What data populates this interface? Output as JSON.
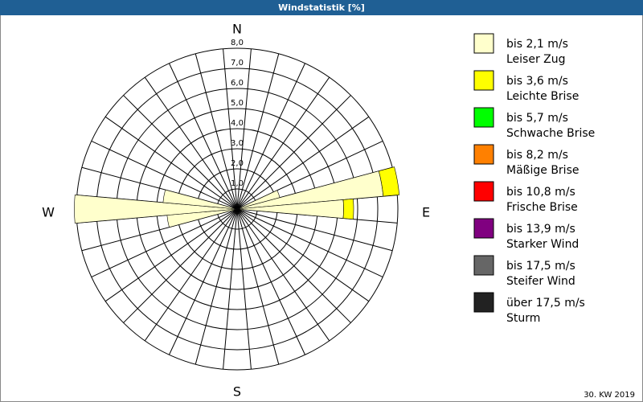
{
  "chart_data": {
    "type": "windrose",
    "title": "Windstatistik [%]",
    "footer": "30. KW 2019",
    "compass_labels": [
      "N",
      "E",
      "S",
      "W"
    ],
    "x": [
      0,
      10,
      20,
      30,
      40,
      50,
      60,
      70,
      80,
      90,
      100,
      110,
      120,
      130,
      140,
      150,
      160,
      170,
      180,
      190,
      200,
      210,
      220,
      230,
      240,
      250,
      260,
      270,
      280,
      290,
      300,
      310,
      320,
      330,
      340,
      350
    ],
    "ylim": [
      0,
      8
    ],
    "yticks": [
      {
        "value": 1,
        "label": "1,0"
      },
      {
        "value": 2,
        "label": "2,0"
      },
      {
        "value": 3,
        "label": "3,0"
      },
      {
        "value": 4,
        "label": "4,0"
      },
      {
        "value": 5,
        "label": "5,0"
      },
      {
        "value": 6,
        "label": "6,0"
      },
      {
        "value": 7,
        "label": "7,0"
      },
      {
        "value": 8,
        "label": "8,0"
      }
    ],
    "series": [
      {
        "name": "bis 2,1 m/s",
        "subtitle": "Leiser Zug",
        "color": "#ffffcc",
        "values": [
          0,
          0,
          0,
          0,
          0,
          0,
          0,
          2.2,
          7.3,
          5.3,
          0.3,
          0,
          0,
          0,
          0,
          0,
          0,
          0,
          0,
          0,
          0,
          0,
          0,
          0,
          0,
          0.3,
          3.5,
          8.1,
          3.7,
          0,
          0,
          0,
          0,
          0,
          0,
          0
        ]
      },
      {
        "name": "bis 3,6 m/s",
        "subtitle": "Leichte Brise",
        "color": "#ffff00",
        "values": [
          0,
          0,
          0,
          0,
          0,
          0,
          0,
          0,
          0.8,
          0.5,
          0,
          0,
          0,
          0,
          0,
          0,
          0,
          0,
          0,
          0,
          0,
          0,
          0,
          0,
          0,
          0,
          0,
          0,
          0,
          0,
          0,
          0,
          0,
          0,
          0,
          0
        ]
      },
      {
        "name": "bis 5,7 m/s",
        "subtitle": "Schwache Brise",
        "color": "#00ff00",
        "values": [
          0,
          0,
          0,
          0,
          0,
          0,
          0,
          0,
          0,
          0,
          0,
          0,
          0,
          0,
          0,
          0,
          0,
          0,
          0,
          0,
          0,
          0,
          0,
          0,
          0,
          0,
          0,
          0,
          0,
          0,
          0,
          0,
          0,
          0,
          0,
          0
        ]
      },
      {
        "name": "bis 8,2 m/s",
        "subtitle": "Mäßige Brise",
        "color": "#ff8000",
        "values": [
          0,
          0,
          0,
          0,
          0,
          0,
          0,
          0,
          0,
          0,
          0,
          0,
          0,
          0,
          0,
          0,
          0,
          0,
          0,
          0,
          0,
          0,
          0,
          0,
          0,
          0,
          0,
          0,
          0,
          0,
          0,
          0,
          0,
          0,
          0,
          0
        ]
      },
      {
        "name": "bis 10,8 m/s",
        "subtitle": "Frische Brise",
        "color": "#ff0000",
        "values": [
          0,
          0,
          0,
          0,
          0,
          0,
          0,
          0,
          0,
          0,
          0,
          0,
          0,
          0,
          0,
          0,
          0,
          0,
          0,
          0,
          0,
          0,
          0,
          0,
          0,
          0,
          0,
          0,
          0,
          0,
          0,
          0,
          0,
          0,
          0,
          0
        ]
      },
      {
        "name": "bis 13,9 m/s",
        "subtitle": "Starker Wind",
        "color": "#800080",
        "values": [
          0,
          0,
          0,
          0,
          0,
          0,
          0,
          0,
          0,
          0,
          0,
          0,
          0,
          0,
          0,
          0,
          0,
          0,
          0,
          0,
          0,
          0,
          0,
          0,
          0,
          0,
          0,
          0,
          0,
          0,
          0,
          0,
          0,
          0,
          0,
          0
        ]
      },
      {
        "name": "bis 17,5 m/s",
        "subtitle": "Steifer Wind",
        "color": "#666666",
        "values": [
          0,
          0,
          0,
          0,
          0,
          0,
          0,
          0,
          0,
          0,
          0,
          0,
          0,
          0,
          0,
          0,
          0,
          0,
          0,
          0,
          0,
          0,
          0,
          0,
          0,
          0,
          0,
          0,
          0,
          0,
          0,
          0,
          0,
          0,
          0,
          0
        ]
      },
      {
        "name": "über 17,5 m/s",
        "subtitle": "Sturm",
        "color": "#222222",
        "values": [
          0,
          0,
          0,
          0,
          0,
          0,
          0,
          0,
          0,
          0,
          0,
          0,
          0,
          0,
          0,
          0,
          0,
          0,
          0,
          0,
          0,
          0,
          0,
          0,
          0,
          0,
          0,
          0,
          0,
          0,
          0,
          0,
          0,
          0,
          0,
          0
        ]
      }
    ]
  }
}
